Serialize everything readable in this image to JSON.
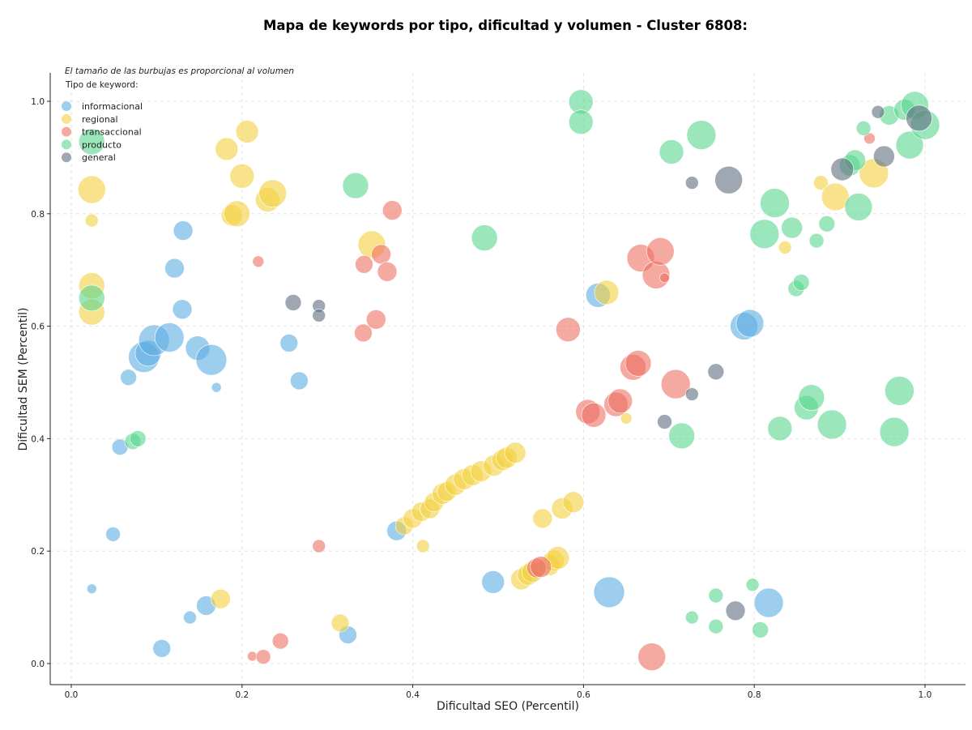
{
  "chart_data": {
    "type": "scatter",
    "title": "Mapa de keywords por tipo, dificultad y volumen - Cluster 6808:",
    "xlabel": "Dificultad SEO (Percentil)",
    "ylabel": "Dificultad SEM (Percentil)",
    "xlim": [
      -0.025,
      1.05
    ],
    "ylim": [
      -0.04,
      1.05
    ],
    "xticks": [
      "0.0",
      "0.2",
      "0.4",
      "0.6",
      "0.8",
      "1.0"
    ],
    "yticks": [
      "0.0",
      "0.2",
      "0.4",
      "0.6",
      "0.8",
      "1.0"
    ],
    "grid": true,
    "size_note": "El tamaño de las burbujas es proporcional al volumen",
    "legend_title": "Tipo de keyword:",
    "legend_position": "top-left",
    "series": [
      {
        "name": "informacional",
        "color": "#5DADE2",
        "points": [
          [
            0.024,
            0.133,
            6
          ],
          [
            0.049,
            0.23,
            9
          ],
          [
            0.057,
            0.385,
            10
          ],
          [
            0.067,
            0.509,
            10
          ],
          [
            0.085,
            0.545,
            19
          ],
          [
            0.09,
            0.552,
            16
          ],
          [
            0.097,
            0.575,
            19
          ],
          [
            0.115,
            0.58,
            18
          ],
          [
            0.106,
            0.027,
            11
          ],
          [
            0.121,
            0.703,
            12
          ],
          [
            0.13,
            0.63,
            12
          ],
          [
            0.131,
            0.77,
            12
          ],
          [
            0.139,
            0.082,
            8
          ],
          [
            0.148,
            0.561,
            15
          ],
          [
            0.158,
            0.103,
            12
          ],
          [
            0.164,
            0.54,
            19
          ],
          [
            0.17,
            0.491,
            6
          ],
          [
            0.255,
            0.57,
            11
          ],
          [
            0.267,
            0.503,
            11
          ],
          [
            0.324,
            0.051,
            11
          ],
          [
            0.381,
            0.236,
            12
          ],
          [
            0.494,
            0.145,
            14
          ],
          [
            0.617,
            0.655,
            15
          ],
          [
            0.63,
            0.127,
            19
          ],
          [
            0.788,
            0.6,
            17
          ],
          [
            0.795,
            0.605,
            17
          ],
          [
            0.817,
            0.108,
            18
          ]
        ]
      },
      {
        "name": "regional",
        "color": "#F4D03F",
        "points": [
          [
            0.024,
            0.843,
            17
          ],
          [
            0.024,
            0.788,
            8
          ],
          [
            0.024,
            0.672,
            16
          ],
          [
            0.024,
            0.625,
            16
          ],
          [
            0.175,
            0.115,
            12
          ],
          [
            0.182,
            0.915,
            14
          ],
          [
            0.188,
            0.797,
            13
          ],
          [
            0.194,
            0.8,
            16
          ],
          [
            0.2,
            0.867,
            15
          ],
          [
            0.206,
            0.946,
            14
          ],
          [
            0.23,
            0.825,
            15
          ],
          [
            0.236,
            0.836,
            17
          ],
          [
            0.315,
            0.072,
            11
          ],
          [
            0.352,
            0.745,
            17
          ],
          [
            0.39,
            0.245,
            11
          ],
          [
            0.4,
            0.258,
            12
          ],
          [
            0.41,
            0.27,
            12
          ],
          [
            0.412,
            0.209,
            8
          ],
          [
            0.42,
            0.275,
            12
          ],
          [
            0.425,
            0.287,
            12
          ],
          [
            0.435,
            0.302,
            13
          ],
          [
            0.44,
            0.306,
            12
          ],
          [
            0.45,
            0.318,
            13
          ],
          [
            0.46,
            0.328,
            13
          ],
          [
            0.47,
            0.335,
            13
          ],
          [
            0.48,
            0.342,
            13
          ],
          [
            0.495,
            0.352,
            13
          ],
          [
            0.505,
            0.362,
            13
          ],
          [
            0.51,
            0.366,
            13
          ],
          [
            0.52,
            0.375,
            13
          ],
          [
            0.527,
            0.15,
            13
          ],
          [
            0.535,
            0.158,
            13
          ],
          [
            0.54,
            0.163,
            13
          ],
          [
            0.552,
            0.258,
            12
          ],
          [
            0.56,
            0.175,
            13
          ],
          [
            0.565,
            0.183,
            13
          ],
          [
            0.57,
            0.188,
            14
          ],
          [
            0.575,
            0.276,
            13
          ],
          [
            0.588,
            0.287,
            13
          ],
          [
            0.627,
            0.66,
            15
          ],
          [
            0.65,
            0.436,
            7
          ],
          [
            0.836,
            0.74,
            8
          ],
          [
            0.878,
            0.855,
            9
          ],
          [
            0.895,
            0.83,
            17
          ],
          [
            0.94,
            0.872,
            18
          ]
        ]
      },
      {
        "name": "transaccional",
        "color": "#EC7063",
        "points": [
          [
            0.212,
            0.013,
            6
          ],
          [
            0.219,
            0.715,
            7
          ],
          [
            0.225,
            0.012,
            9
          ],
          [
            0.245,
            0.04,
            10
          ],
          [
            0.29,
            0.209,
            8
          ],
          [
            0.342,
            0.588,
            11
          ],
          [
            0.343,
            0.71,
            11
          ],
          [
            0.357,
            0.612,
            12
          ],
          [
            0.363,
            0.728,
            12
          ],
          [
            0.37,
            0.697,
            12
          ],
          [
            0.376,
            0.806,
            12
          ],
          [
            0.545,
            0.17,
            12
          ],
          [
            0.55,
            0.172,
            13
          ],
          [
            0.582,
            0.594,
            15
          ],
          [
            0.605,
            0.448,
            15
          ],
          [
            0.612,
            0.442,
            15
          ],
          [
            0.638,
            0.461,
            15
          ],
          [
            0.643,
            0.467,
            15
          ],
          [
            0.658,
            0.527,
            16
          ],
          [
            0.664,
            0.534,
            16
          ],
          [
            0.667,
            0.721,
            17
          ],
          [
            0.685,
            0.691,
            17
          ],
          [
            0.69,
            0.733,
            17
          ],
          [
            0.695,
            0.686,
            6
          ],
          [
            0.68,
            0.012,
            17
          ],
          [
            0.708,
            0.497,
            18
          ],
          [
            0.935,
            0.934,
            7
          ]
        ]
      },
      {
        "name": "producto",
        "color": "#58D68D",
        "points": [
          [
            0.024,
            0.928,
            16
          ],
          [
            0.024,
            0.65,
            16
          ],
          [
            0.072,
            0.395,
            10
          ],
          [
            0.078,
            0.4,
            10
          ],
          [
            0.333,
            0.85,
            16
          ],
          [
            0.484,
            0.757,
            16
          ],
          [
            0.597,
            0.999,
            15
          ],
          [
            0.597,
            0.963,
            15
          ],
          [
            0.703,
            0.91,
            15
          ],
          [
            0.715,
            0.405,
            16
          ],
          [
            0.727,
            0.082,
            8
          ],
          [
            0.738,
            0.94,
            18
          ],
          [
            0.755,
            0.121,
            9
          ],
          [
            0.755,
            0.066,
            9
          ],
          [
            0.798,
            0.14,
            8
          ],
          [
            0.807,
            0.06,
            10
          ],
          [
            0.812,
            0.764,
            18
          ],
          [
            0.824,
            0.819,
            18
          ],
          [
            0.83,
            0.418,
            15
          ],
          [
            0.844,
            0.775,
            13
          ],
          [
            0.849,
            0.667,
            10
          ],
          [
            0.855,
            0.678,
            10
          ],
          [
            0.873,
            0.752,
            9
          ],
          [
            0.885,
            0.782,
            10
          ],
          [
            0.861,
            0.455,
            15
          ],
          [
            0.867,
            0.473,
            16
          ],
          [
            0.891,
            0.425,
            18
          ],
          [
            0.912,
            0.886,
            13
          ],
          [
            0.918,
            0.895,
            13
          ],
          [
            0.922,
            0.812,
            17
          ],
          [
            0.928,
            0.952,
            9
          ],
          [
            0.958,
            0.975,
            12
          ],
          [
            0.964,
            0.412,
            18
          ],
          [
            0.97,
            0.485,
            18
          ],
          [
            0.976,
            0.985,
            13
          ],
          [
            0.982,
            0.922,
            17
          ],
          [
            0.988,
            0.993,
            17
          ],
          [
            1.0,
            0.958,
            18
          ]
        ]
      },
      {
        "name": "general",
        "color": "#5D6D7E",
        "points": [
          [
            0.26,
            0.642,
            10
          ],
          [
            0.29,
            0.636,
            8
          ],
          [
            0.29,
            0.619,
            8
          ],
          [
            0.695,
            0.43,
            9
          ],
          [
            0.727,
            0.855,
            8
          ],
          [
            0.727,
            0.479,
            8
          ],
          [
            0.755,
            0.519,
            10
          ],
          [
            0.77,
            0.86,
            17
          ],
          [
            0.778,
            0.094,
            12
          ],
          [
            0.903,
            0.879,
            14
          ],
          [
            0.945,
            0.981,
            8
          ],
          [
            0.952,
            0.902,
            13
          ],
          [
            0.993,
            0.97,
            16
          ]
        ]
      }
    ]
  }
}
